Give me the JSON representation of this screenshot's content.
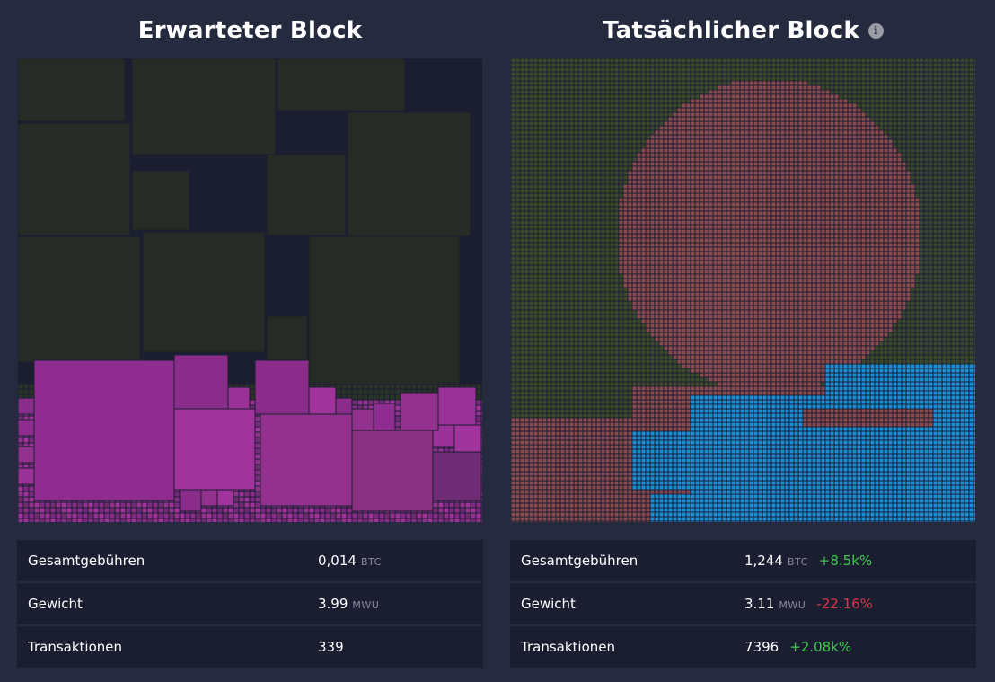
{
  "expected": {
    "title": "Erwarteter Block",
    "stats": [
      {
        "label": "Gesamtgebühren",
        "value": "0,014",
        "unit": "BTC",
        "delta": ""
      },
      {
        "label": "Gewicht",
        "value": "3.99",
        "unit": "MWU",
        "delta": ""
      },
      {
        "label": "Transaktionen",
        "value": "339",
        "unit": "",
        "delta": ""
      }
    ]
  },
  "actual": {
    "title": "Tatsächlicher Block",
    "info_icon": "info-icon",
    "stats": [
      {
        "label": "Gesamtgebühren",
        "value": "1,244",
        "unit": "BTC",
        "delta": "+8.5k%",
        "delta_sign": "positive"
      },
      {
        "label": "Gewicht",
        "value": "3.11",
        "unit": "MWU",
        "delta": "-22.16%",
        "delta_sign": "negative"
      },
      {
        "label": "Transaktionen",
        "value": "7396",
        "unit": "",
        "delta": "+2.08k%",
        "delta_sign": "positive"
      }
    ]
  },
  "colors": {
    "background": "#262a3f",
    "panel": "#1b1d31",
    "low_fee_block": "#262c25",
    "high_fee_block": "#8e2d8f",
    "mosaic_green": "#3c4a2c",
    "mosaic_red": "#8a4a4e",
    "mosaic_blue": "#1a8fd8",
    "positive": "#3bcc49",
    "negative": "#dc3545"
  }
}
